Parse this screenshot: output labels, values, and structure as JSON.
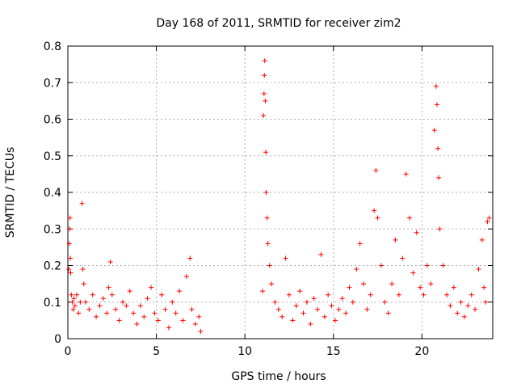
{
  "chart_data": {
    "type": "scatter",
    "title": "Day 168 of 2011, SRMTID for receiver zim2",
    "xlabel": "GPS time / hours",
    "ylabel": "SRMTID / TECUs",
    "xlim": [
      0,
      24
    ],
    "ylim": [
      0,
      0.8
    ],
    "x_ticks": [
      0,
      5,
      10,
      15,
      20
    ],
    "x_tick_labels": [
      "0",
      "5",
      "10",
      "15",
      "20"
    ],
    "y_ticks": [
      0,
      0.1,
      0.2,
      0.3,
      0.4,
      0.5,
      0.6,
      0.7,
      0.8
    ],
    "y_tick_labels": [
      "0",
      "0.1",
      "0.2",
      "0.3",
      "0.4",
      "0.5",
      "0.6",
      "0.7",
      "0.8"
    ],
    "grid": true,
    "marker": "+",
    "marker_color": "#ff0000",
    "series": [
      {
        "name": "SRMTID",
        "points": [
          [
            0.05,
            0.19
          ],
          [
            0.08,
            0.26
          ],
          [
            0.1,
            0.3
          ],
          [
            0.12,
            0.33
          ],
          [
            0.14,
            0.22
          ],
          [
            0.16,
            0.18
          ],
          [
            0.2,
            0.12
          ],
          [
            0.25,
            0.1
          ],
          [
            0.3,
            0.08
          ],
          [
            0.35,
            0.11
          ],
          [
            0.4,
            0.09
          ],
          [
            0.5,
            0.12
          ],
          [
            0.6,
            0.07
          ],
          [
            0.7,
            0.1
          ],
          [
            0.8,
            0.37
          ],
          [
            0.85,
            0.19
          ],
          [
            0.9,
            0.15
          ],
          [
            1.0,
            0.1
          ],
          [
            1.2,
            0.08
          ],
          [
            1.4,
            0.12
          ],
          [
            1.6,
            0.06
          ],
          [
            1.8,
            0.09
          ],
          [
            2.0,
            0.11
          ],
          [
            2.2,
            0.07
          ],
          [
            2.3,
            0.14
          ],
          [
            2.4,
            0.21
          ],
          [
            2.5,
            0.12
          ],
          [
            2.7,
            0.08
          ],
          [
            2.9,
            0.05
          ],
          [
            3.1,
            0.1
          ],
          [
            3.3,
            0.09
          ],
          [
            3.5,
            0.13
          ],
          [
            3.7,
            0.07
          ],
          [
            3.9,
            0.04
          ],
          [
            4.1,
            0.09
          ],
          [
            4.3,
            0.06
          ],
          [
            4.5,
            0.11
          ],
          [
            4.7,
            0.14
          ],
          [
            4.9,
            0.07
          ],
          [
            5.1,
            0.05
          ],
          [
            5.3,
            0.12
          ],
          [
            5.5,
            0.08
          ],
          [
            5.7,
            0.03
          ],
          [
            5.9,
            0.1
          ],
          [
            6.1,
            0.07
          ],
          [
            6.3,
            0.13
          ],
          [
            6.5,
            0.05
          ],
          [
            6.7,
            0.17
          ],
          [
            6.9,
            0.22
          ],
          [
            7.0,
            0.08
          ],
          [
            7.2,
            0.04
          ],
          [
            7.4,
            0.06
          ],
          [
            7.5,
            0.02
          ],
          [
            11.0,
            0.13
          ],
          [
            11.05,
            0.61
          ],
          [
            11.08,
            0.67
          ],
          [
            11.1,
            0.72
          ],
          [
            11.12,
            0.76
          ],
          [
            11.15,
            0.65
          ],
          [
            11.18,
            0.51
          ],
          [
            11.2,
            0.4
          ],
          [
            11.25,
            0.33
          ],
          [
            11.3,
            0.26
          ],
          [
            11.4,
            0.2
          ],
          [
            11.5,
            0.15
          ],
          [
            11.7,
            0.1
          ],
          [
            11.9,
            0.08
          ],
          [
            12.1,
            0.06
          ],
          [
            12.3,
            0.22
          ],
          [
            12.5,
            0.12
          ],
          [
            12.7,
            0.05
          ],
          [
            12.9,
            0.09
          ],
          [
            13.1,
            0.13
          ],
          [
            13.3,
            0.07
          ],
          [
            13.5,
            0.1
          ],
          [
            13.7,
            0.04
          ],
          [
            13.9,
            0.11
          ],
          [
            14.1,
            0.08
          ],
          [
            14.3,
            0.23
          ],
          [
            14.5,
            0.06
          ],
          [
            14.7,
            0.12
          ],
          [
            14.9,
            0.09
          ],
          [
            15.1,
            0.05
          ],
          [
            15.3,
            0.08
          ],
          [
            15.5,
            0.11
          ],
          [
            15.7,
            0.07
          ],
          [
            15.9,
            0.14
          ],
          [
            16.1,
            0.1
          ],
          [
            16.3,
            0.19
          ],
          [
            16.5,
            0.26
          ],
          [
            16.7,
            0.15
          ],
          [
            16.9,
            0.08
          ],
          [
            17.1,
            0.12
          ],
          [
            17.3,
            0.35
          ],
          [
            17.4,
            0.46
          ],
          [
            17.5,
            0.33
          ],
          [
            17.7,
            0.2
          ],
          [
            17.9,
            0.1
          ],
          [
            18.1,
            0.07
          ],
          [
            18.3,
            0.15
          ],
          [
            18.5,
            0.27
          ],
          [
            18.7,
            0.12
          ],
          [
            18.9,
            0.22
          ],
          [
            19.1,
            0.45
          ],
          [
            19.3,
            0.33
          ],
          [
            19.5,
            0.18
          ],
          [
            19.7,
            0.29
          ],
          [
            19.9,
            0.14
          ],
          [
            20.1,
            0.12
          ],
          [
            20.3,
            0.2
          ],
          [
            20.5,
            0.15
          ],
          [
            20.7,
            0.57
          ],
          [
            20.8,
            0.69
          ],
          [
            20.85,
            0.64
          ],
          [
            20.9,
            0.52
          ],
          [
            20.95,
            0.44
          ],
          [
            21.0,
            0.3
          ],
          [
            21.2,
            0.2
          ],
          [
            21.4,
            0.12
          ],
          [
            21.6,
            0.09
          ],
          [
            21.8,
            0.14
          ],
          [
            22.0,
            0.07
          ],
          [
            22.2,
            0.1
          ],
          [
            22.4,
            0.06
          ],
          [
            22.6,
            0.09
          ],
          [
            22.8,
            0.12
          ],
          [
            23.0,
            0.08
          ],
          [
            23.2,
            0.19
          ],
          [
            23.4,
            0.27
          ],
          [
            23.5,
            0.14
          ],
          [
            23.6,
            0.1
          ],
          [
            23.7,
            0.32
          ],
          [
            23.8,
            0.33
          ]
        ]
      }
    ]
  }
}
